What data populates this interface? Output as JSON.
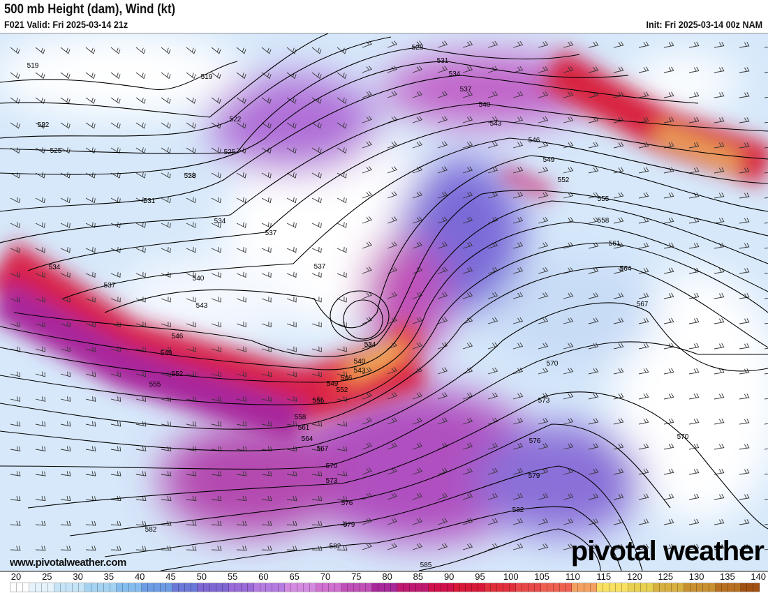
{
  "header": {
    "title": "500 mb Height (dam), Wind (kt)",
    "valid": "F021 Valid: Fri 2025-03-14 21z",
    "init": "Init: Fri 2025-03-14 00z NAM"
  },
  "footer": {
    "url": "www.pivotalweather.com",
    "logo": "pivotal weather"
  },
  "colorbar": {
    "unit": "kt",
    "ticks": [
      "20",
      "25",
      "30",
      "35",
      "40",
      "45",
      "50",
      "55",
      "60",
      "65",
      "70",
      "75",
      "80",
      "85",
      "90",
      "95",
      "100",
      "105",
      "110",
      "115",
      "120",
      "125",
      "130",
      "135",
      "140"
    ],
    "colors": [
      "#ffffff",
      "#e6f3fc",
      "#c6e4f8",
      "#a4d2f3",
      "#84bdee",
      "#6c9ce3",
      "#6a78d8",
      "#8066d2",
      "#9a6ad8",
      "#b47ce0",
      "#d48ae0",
      "#d070d0",
      "#c050b8",
      "#a8289c",
      "#c01870",
      "#d0104a",
      "#d81838",
      "#e0303c",
      "#e84848",
      "#f06050",
      "#f4a060",
      "#f8e060",
      "#e8d050",
      "#d8b040",
      "#c89030",
      "#b87020",
      "#a05010"
    ]
  },
  "contours": {
    "labels": [
      "519",
      "519",
      "522",
      "522",
      "525",
      "525",
      "528",
      "528",
      "531",
      "531",
      "534",
      "534",
      "534",
      "537",
      "537",
      "537",
      "537",
      "540",
      "540",
      "543",
      "543",
      "546",
      "546",
      "549",
      "549",
      "552",
      "552",
      "555",
      "555",
      "558",
      "561",
      "564",
      "567",
      "570",
      "570",
      "573",
      "576",
      "579",
      "582",
      "582",
      "585",
      "534",
      "540",
      "543",
      "546",
      "549",
      "552",
      "555",
      "558",
      "561",
      "564",
      "567",
      "570",
      "573",
      "576",
      "579",
      "582"
    ]
  }
}
